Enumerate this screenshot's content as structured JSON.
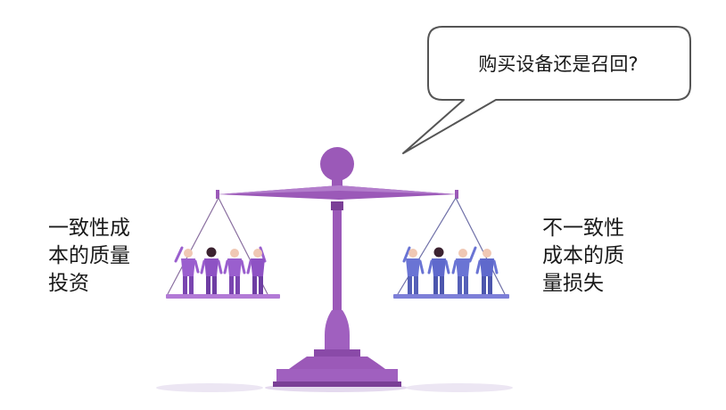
{
  "speech_bubble": {
    "text": "购买设备还是召回?"
  },
  "left_label": {
    "lines": [
      "一致性成",
      "本的质量",
      "投资"
    ]
  },
  "right_label": {
    "lines": [
      "不一致性",
      "成本的质",
      "量损失"
    ]
  },
  "colors": {
    "scale_dark": "#7a3f96",
    "scale_main": "#9b59b8",
    "scale_light": "#c9a3dc",
    "left_pan": "#b27ad6",
    "right_pan": "#7d7fd8",
    "left_people": "#9a5fce",
    "right_people": "#6a74d4",
    "skin_dark": "#3b2230",
    "shadow": "#ece6f3",
    "bubble_fill": "#ffffff",
    "bubble_stroke": "#555555"
  },
  "groups": {
    "left_people_count": 4,
    "right_people_count": 4
  }
}
